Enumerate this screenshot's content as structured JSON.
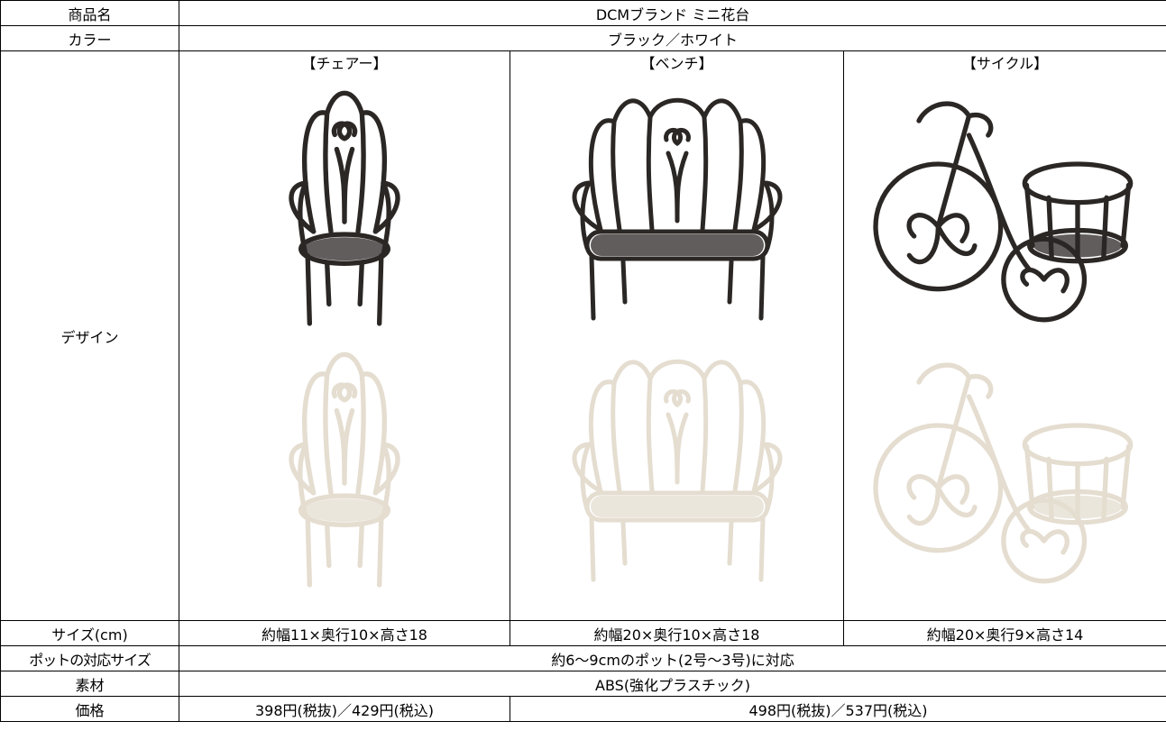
{
  "product_name": {
    "label": "商品名",
    "value": "DCMブランド ミニ花台"
  },
  "color": {
    "label": "カラー",
    "value": "ブラック／ホワイト"
  },
  "design": {
    "label": "デザイン",
    "items": [
      "【チェアー】",
      "【ベンチ】",
      "【サイクル】"
    ]
  },
  "size": {
    "label": "サイズ(cm)",
    "values": [
      "約幅11×奥行10×高さ18",
      "約幅20×奥行10×高さ18",
      "約幅20×奥行9×高さ14"
    ]
  },
  "pot_size": {
    "label": "ポットの対応サイズ",
    "value": "約6～9cmのポット(2号～3号)に対応"
  },
  "material": {
    "label": "素材",
    "value": "ABS(強化プラスチック)"
  },
  "price": {
    "label": "価格",
    "values": [
      "398円(税抜)／429円(税込)",
      "498円(税抜)／537円(税込)"
    ]
  }
}
